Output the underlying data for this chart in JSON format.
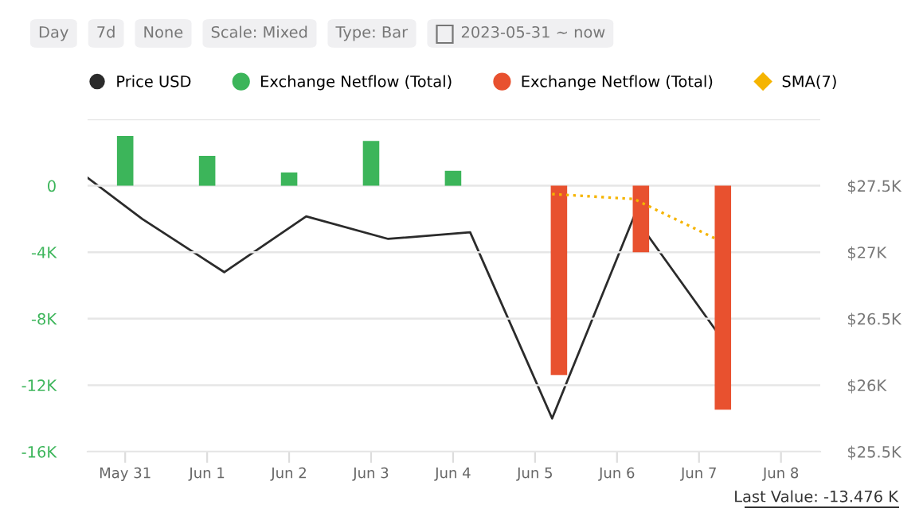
{
  "chart_data": {
    "type": "bar",
    "annotations": [
      "Day",
      "7d",
      "None",
      "Scale: Mixed",
      "Type: Bar",
      "2023-05-31 ~ now",
      "Last Value: -13.476 K"
    ],
    "series": [
      {
        "name": "Price USD",
        "type": "line",
        "axis": "y2",
        "color": "#2b2b2b",
        "x": [
          "2023-05-30T13:00",
          "2023-05-31T05:00",
          "2023-06-01T05:00",
          "2023-06-02T05:00",
          "2023-06-03T05:00",
          "2023-06-04T05:00",
          "2023-06-05T05:00",
          "2023-06-06T05:00",
          "2023-06-07T05:00"
        ],
        "values": [
          27560,
          27250,
          26850,
          27270,
          27100,
          27150,
          25750,
          27270,
          26410
        ]
      },
      {
        "name": "Exchange Netflow (Total)",
        "color": "#3cb55a",
        "x": [
          "2023-05-31",
          "2023-06-01",
          "2023-06-02",
          "2023-06-03",
          "2023-06-04"
        ],
        "values": [
          3000,
          1800,
          800,
          2700,
          900
        ]
      },
      {
        "name": "Exchange Netflow (Total)",
        "color": "#e8512f",
        "x": [
          "2023-06-05T07:00",
          "2023-06-06T07:00",
          "2023-06-07T07:00"
        ],
        "values": [
          -11400,
          -4000,
          -13476
        ]
      },
      {
        "name": "SMA(7)",
        "type": "line",
        "line_style": "dotted",
        "color": "#f5b400",
        "x": [
          "2023-06-05T05:00",
          "2023-06-06T05:00",
          "2023-06-07T05:00"
        ],
        "values": [
          -500,
          -800,
          -3200
        ]
      }
    ],
    "xlim": [
      "2023-05-30T13:00",
      "2023-06-08T11:30"
    ],
    "xticks": [
      {
        "value": "2023-05-31",
        "label": "May 31"
      },
      {
        "value": "2023-06-01",
        "label": "Jun 1"
      },
      {
        "value": "2023-06-02",
        "label": "Jun 2"
      },
      {
        "value": "2023-06-03",
        "label": "Jun 3"
      },
      {
        "value": "2023-06-04",
        "label": "Jun 4"
      },
      {
        "value": "2023-06-05",
        "label": "Jun 5"
      },
      {
        "value": "2023-06-06",
        "label": "Jun 6"
      },
      {
        "value": "2023-06-07",
        "label": "Jun 7"
      },
      {
        "value": "2023-06-08",
        "label": "Jun 8"
      }
    ],
    "ylim": [
      -16000,
      4000
    ],
    "yticks": [
      {
        "value": -16000,
        "label": "-16K"
      },
      {
        "value": -12000,
        "label": "-12K"
      },
      {
        "value": -8000,
        "label": "-8K"
      },
      {
        "value": -4000,
        "label": "-4K"
      },
      0,
      {
        "value": 4000,
        "label": null
      }
    ],
    "y2lim": [
      25500,
      28000
    ],
    "y2ticks": [
      {
        "value": 25500,
        "label": "$25.5K"
      },
      {
        "value": 26000,
        "label": "$26K"
      },
      {
        "value": 26500,
        "label": "$26.5K"
      },
      {
        "value": 27000,
        "label": "$27K"
      },
      {
        "value": 27500,
        "label": "$27.5K"
      },
      {
        "value": 28000,
        "label": null
      }
    ],
    "grid": "y",
    "legend": "top"
  }
}
